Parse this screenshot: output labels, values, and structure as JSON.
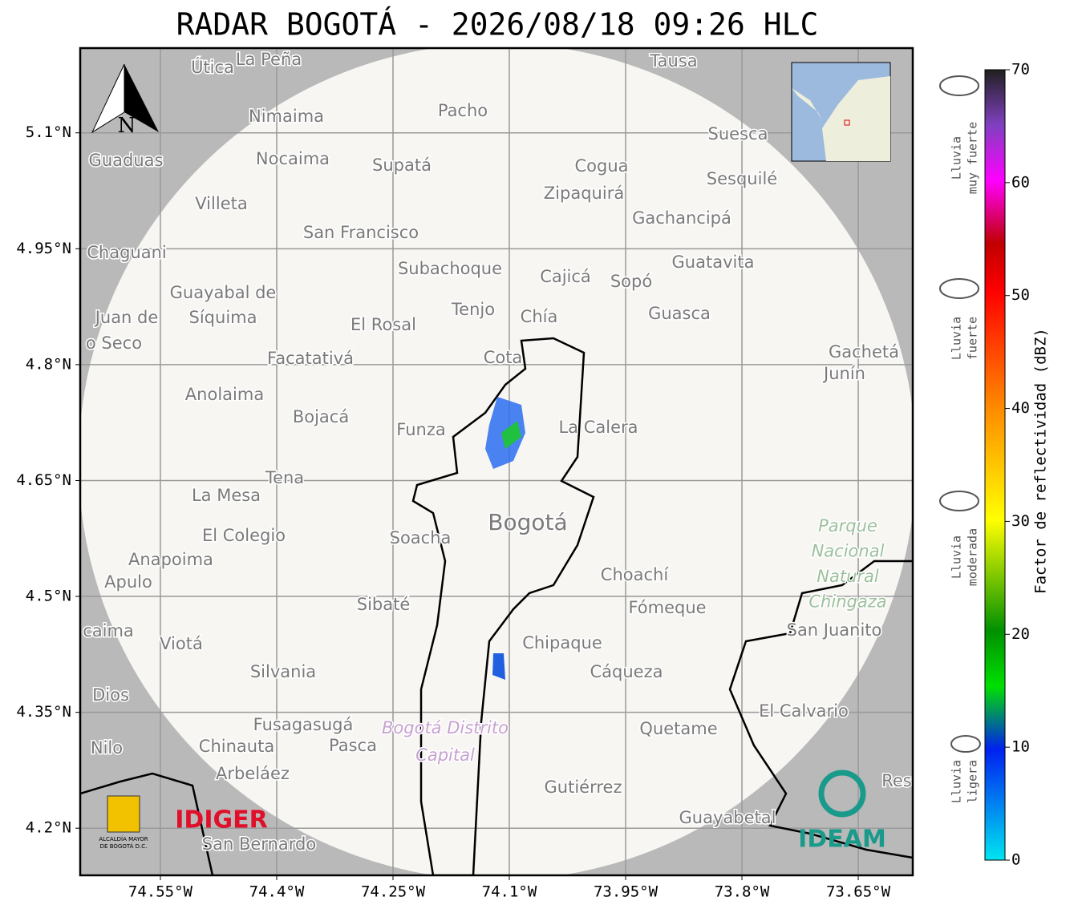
{
  "map": {
    "title": "RADAR BOGOTÁ - 2026/08/18 09:26 HLC",
    "xlim": [
      -74.6534,
      -73.5797
    ],
    "ylim": [
      4.139,
      5.2097
    ],
    "xticks": [
      {
        "value": -74.55,
        "label": "74.55°W"
      },
      {
        "value": -74.4,
        "label": "74.4°W"
      },
      {
        "value": -74.25,
        "label": "74.25°W"
      },
      {
        "value": -74.1,
        "label": "74.1°W"
      },
      {
        "value": -73.95,
        "label": "73.95°W"
      },
      {
        "value": -73.8,
        "label": "73.8°W"
      },
      {
        "value": -73.65,
        "label": "73.65°W"
      }
    ],
    "yticks": [
      {
        "value": 4.2,
        "label": "4.2°N"
      },
      {
        "value": 4.35,
        "label": "4.35°N"
      },
      {
        "value": 4.5,
        "label": "4.5°N"
      },
      {
        "value": 4.65,
        "label": "4.65°N"
      },
      {
        "value": 4.8,
        "label": "4.8°N"
      },
      {
        "value": 4.95,
        "label": "4.95°N"
      },
      {
        "value": 5.1,
        "label": "5.1°N"
      }
    ],
    "grid": true,
    "north": "N",
    "places": [
      "Útica",
      "La Peña",
      "Tausa",
      "Nimaima",
      "Pacho",
      "Suesca",
      "Guaduas",
      "Nocaima",
      "Supatá",
      "Cogua",
      "Sesquilé",
      "Zipaquirá",
      "Villeta",
      "Gachancipá",
      "San Francisco",
      "Chaguani",
      "Guatavita",
      "Subachoque",
      "Cajicá",
      "Sopó",
      "Guayabal de",
      "Tenjo",
      "Chía",
      "Guasca",
      "Juan de",
      "Síquima",
      "El Rosal",
      "o Seco",
      "Facatativá",
      "Cota",
      "Gachetá",
      "Junín",
      "Anolaima",
      "Bojacá",
      "Funza",
      "La Calera",
      "Tena",
      "La Mesa",
      "Bogotá",
      "El Colegio",
      "Soacha",
      "Anapoima",
      "Apulo",
      "Choachí",
      "Sibaté",
      "Fómeque",
      "caima",
      "San Juanito",
      "Viotá",
      "Chipaque",
      "Silvania",
      "Cáqueza",
      "Dios",
      "El Calvario",
      "Fusagasugá",
      "Quetame",
      "Nilo",
      "Chinauta",
      "Pasca",
      "Arbeláez",
      "Gutiérrez",
      "Res",
      "Guayabetal",
      "San Bernardo"
    ],
    "park": [
      "Parque",
      "Nacional",
      "Natural",
      "Chingaza"
    ],
    "district": [
      "Bogotá Distrito",
      "Capital"
    ]
  },
  "colorbar": {
    "label": "Factor de reflectividad (dBZ)",
    "lim": [
      0,
      70
    ],
    "ticks": [
      0,
      10,
      20,
      30,
      40,
      50,
      60,
      70
    ]
  },
  "legend": [
    [
      "Lluvia",
      "muy fuerte"
    ],
    [
      "Lluvia",
      "fuerte"
    ],
    [
      "Lluvia",
      "moderada"
    ],
    [
      "Lluvia",
      "ligera"
    ]
  ],
  "logos": {
    "alcaldia": [
      "ALCALDÍA MAYOR",
      "DE BOGOTÁ D.C."
    ],
    "idiger": "IDIGER",
    "ideam": "IDEAM"
  }
}
